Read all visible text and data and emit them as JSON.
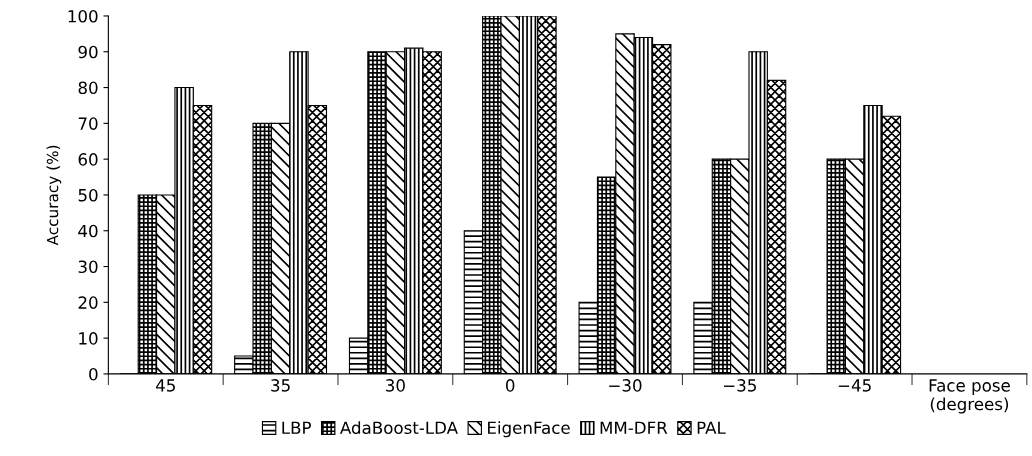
{
  "chart_data": {
    "type": "bar",
    "ylabel": "Accuracy (%)",
    "categories": [
      "45",
      "35",
      "30",
      "0",
      "−30",
      "−35",
      "−45",
      "Face pose\n(degrees)"
    ],
    "series": [
      {
        "name": "LBP",
        "color": "#000000",
        "values": [
          0,
          5,
          10,
          40,
          20,
          20,
          0,
          null
        ]
      },
      {
        "name": "AdaBoost-LDA",
        "color": "#000000",
        "values": [
          50,
          70,
          90,
          100,
          55,
          60,
          60,
          null
        ]
      },
      {
        "name": "EigenFace",
        "color": "#000000",
        "values": [
          50,
          70,
          90,
          100,
          95,
          60,
          60,
          null
        ]
      },
      {
        "name": "MM-DFR",
        "color": "#000000",
        "values": [
          80,
          90,
          91,
          100,
          94,
          90,
          75,
          null
        ]
      },
      {
        "name": "PAL",
        "color": "#000000",
        "values": [
          75,
          75,
          90,
          100,
          92,
          82,
          72,
          null
        ]
      }
    ],
    "ylim": [
      0,
      100
    ],
    "yticks": [
      0,
      10,
      20,
      30,
      40,
      50,
      60,
      70,
      80,
      90,
      100
    ],
    "grid": false,
    "legend": "bottom"
  }
}
